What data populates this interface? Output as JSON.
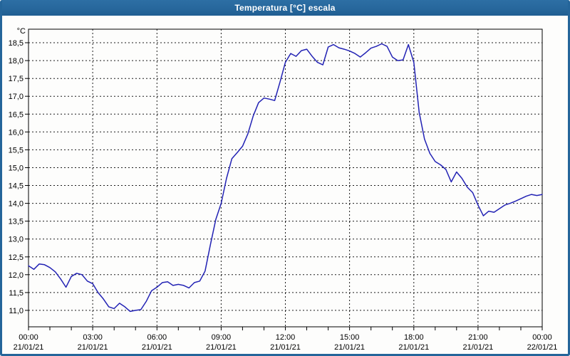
{
  "window": {
    "title": "Temperatura [°C] escala",
    "title_bar_color": "#27679C",
    "border_color": "#24659A",
    "background": "#FDFDFC"
  },
  "chart_data": {
    "type": "line",
    "title": "Temperatura [°C] escala",
    "ylabel": "°C",
    "xlabel": "",
    "grid": "dashed-black",
    "legend": "none",
    "xlim_hours": [
      0,
      24
    ],
    "ylim": [
      10.54,
      18.88
    ],
    "x_minor_tick_hours": 1,
    "x_step_hours": 0.25,
    "x_start_hour": 0,
    "y_ticks": [
      {
        "value": 11.0,
        "label": "11,0"
      },
      {
        "value": 11.5,
        "label": "11,5"
      },
      {
        "value": 12.0,
        "label": "12,0"
      },
      {
        "value": 12.5,
        "label": "12,5"
      },
      {
        "value": 13.0,
        "label": "13,0"
      },
      {
        "value": 13.5,
        "label": "13,5"
      },
      {
        "value": 14.0,
        "label": "14,0"
      },
      {
        "value": 14.5,
        "label": "14,5"
      },
      {
        "value": 15.0,
        "label": "15,0"
      },
      {
        "value": 15.5,
        "label": "15,5"
      },
      {
        "value": 16.0,
        "label": "16,0"
      },
      {
        "value": 16.5,
        "label": "16,5"
      },
      {
        "value": 17.0,
        "label": "17,0"
      },
      {
        "value": 17.5,
        "label": "17,5"
      },
      {
        "value": 18.0,
        "label": "18,0"
      },
      {
        "value": 18.5,
        "label": "18,5"
      }
    ],
    "x_ticks": [
      {
        "hour": 0,
        "time": "00:00",
        "date": "21/01/21"
      },
      {
        "hour": 3,
        "time": "03:00",
        "date": "21/01/21"
      },
      {
        "hour": 6,
        "time": "06:00",
        "date": "21/01/21"
      },
      {
        "hour": 9,
        "time": "09:00",
        "date": "21/01/21"
      },
      {
        "hour": 12,
        "time": "12:00",
        "date": "21/01/21"
      },
      {
        "hour": 15,
        "time": "15:00",
        "date": "21/01/21"
      },
      {
        "hour": 18,
        "time": "18:00",
        "date": "21/01/21"
      },
      {
        "hour": 21,
        "time": "21:00",
        "date": "21/01/21"
      },
      {
        "hour": 24,
        "time": "00:00",
        "date": "22/01/21"
      }
    ],
    "series": [
      {
        "name": "Temperatura",
        "color": "#2222B4",
        "values": [
          12.25,
          12.15,
          12.3,
          12.28,
          12.2,
          12.08,
          11.88,
          11.65,
          11.95,
          12.04,
          12.0,
          11.82,
          11.75,
          11.5,
          11.32,
          11.1,
          11.05,
          11.2,
          11.1,
          10.97,
          11.0,
          11.02,
          11.25,
          11.55,
          11.65,
          11.78,
          11.8,
          11.7,
          11.73,
          11.7,
          11.63,
          11.78,
          11.82,
          12.1,
          12.85,
          13.55,
          14.0,
          14.7,
          15.25,
          15.42,
          15.6,
          15.95,
          16.45,
          16.82,
          16.95,
          16.92,
          16.88,
          17.4,
          17.95,
          18.2,
          18.12,
          18.28,
          18.32,
          18.12,
          17.95,
          17.88,
          18.38,
          18.45,
          18.36,
          18.32,
          18.27,
          18.2,
          18.1,
          18.22,
          18.35,
          18.4,
          18.47,
          18.4,
          18.1,
          18.0,
          18.02,
          18.45,
          17.95,
          16.55,
          15.8,
          15.4,
          15.17,
          15.08,
          14.95,
          14.6,
          14.88,
          14.7,
          14.45,
          14.3,
          13.95,
          13.65,
          13.78,
          13.75,
          13.85,
          13.95,
          14.0,
          14.06,
          14.13,
          14.2,
          14.25,
          14.22,
          14.25
        ]
      }
    ]
  }
}
